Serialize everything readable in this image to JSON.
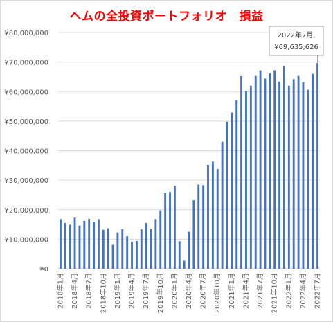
{
  "chart_data": {
    "type": "bar",
    "title": "ヘムの全投資ポートフォリオ　損益",
    "xlabel": "",
    "ylabel": "",
    "ylim": [
      0,
      80000000
    ],
    "yticks": [
      0,
      10000000,
      20000000,
      30000000,
      40000000,
      50000000,
      60000000,
      70000000,
      80000000
    ],
    "ytick_labels": [
      "¥0",
      "¥10,000,000",
      "¥20,000,000",
      "¥30,000,000",
      "¥40,000,000",
      "¥50,000,000",
      "¥60,000,000",
      "¥70,000,000",
      "¥80,000,000"
    ],
    "x_tick_labels": [
      "2018年1月",
      "2018年4月",
      "2018年7月",
      "2018年10月",
      "2019年1月",
      "2019年4月",
      "2019年7月",
      "2019年10月",
      "2020年1月",
      "2020年4月",
      "2020年7月",
      "2020年10月",
      "2021年1月",
      "2021年4月",
      "2021年7月",
      "2021年10月",
      "2022年1月",
      "2022年4月",
      "2022年7月"
    ],
    "x_tick_every": 3,
    "grid": true,
    "bar_color": "#4472c4",
    "title_color": "#ff0000",
    "values": [
      16800000,
      15500000,
      14900000,
      17300000,
      14600000,
      16200000,
      16900000,
      15900000,
      16800000,
      13200000,
      13700000,
      8100000,
      12300000,
      13400000,
      11000000,
      9100000,
      9400000,
      13400000,
      15500000,
      13500000,
      16800000,
      19800000,
      25700000,
      26000000,
      28100000,
      9300000,
      2700000,
      12500000,
      23200000,
      28500000,
      28300000,
      35200000,
      36300000,
      33800000,
      43000000,
      49800000,
      52900000,
      57100000,
      65200000,
      60100000,
      62000000,
      65300000,
      67200000,
      64400000,
      66200000,
      67200000,
      63400000,
      68700000,
      62000000,
      64200000,
      65300000,
      63200000,
      60600000,
      66000000,
      69635626
    ],
    "annotation": {
      "index": 54,
      "line1": "2022年7月,",
      "line2": "¥69,635,626"
    }
  }
}
